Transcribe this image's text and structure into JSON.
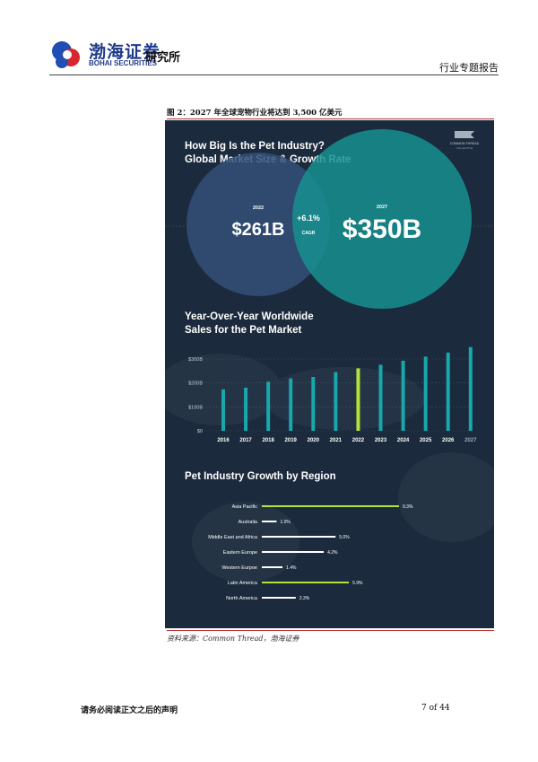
{
  "header": {
    "brand_cn": "渤海证券",
    "brand_en": "BOHAI SECURITIES",
    "institute": "研究所",
    "report_type": "行业专题报告"
  },
  "figure": {
    "caption": "图 2：2027 年全球宠物行业将达到 3,500 亿美元",
    "source": "资料来源：Common Thread，渤海证券"
  },
  "infographic": {
    "brand_line1": "COMMON THREAD",
    "brand_line2": "COLLECTIVE",
    "colors": {
      "background": "#1b2a3c",
      "accent_teal": "#17a8ad",
      "accent_lime": "#b6e03a",
      "circle_2022": "#324f78",
      "circle_2027": "#168f8f"
    }
  },
  "chart_data": [
    {
      "type": "bubble",
      "title": "How Big Is the Pet Industry?\nGlobal Market Size & Growth Rate",
      "title_line1": "How Big Is the Pet Industry?",
      "title_line2": "Global Market Size & Growth Rate",
      "points": [
        {
          "year": "2022",
          "label": "$261B",
          "value": 261
        },
        {
          "year": "2027",
          "label": "$350B",
          "value": 350
        }
      ],
      "growth_label": "+6.1%",
      "growth_unit": "CAGR"
    },
    {
      "type": "bar",
      "title": "Year-Over-Year Worldwide\nSales for the Pet Market",
      "title_line1": "Year-Over-Year Worldwide",
      "title_line2": "Sales for the Pet Market",
      "categories": [
        "2016",
        "2017",
        "2018",
        "2019",
        "2020",
        "2021",
        "2022",
        "2023",
        "2024",
        "2025",
        "2026",
        "2027"
      ],
      "values": [
        173,
        180,
        205,
        219,
        225,
        245,
        261,
        276,
        293,
        310,
        327,
        350
      ],
      "highlight_category": "2022",
      "ylim": [
        0,
        300
      ],
      "yticks": [
        0,
        100,
        200,
        300
      ],
      "ytick_labels": [
        "$0",
        "$100B",
        "$200B",
        "$300B"
      ],
      "grid": true
    },
    {
      "type": "bar",
      "orientation": "horizontal",
      "title": "Pet Industry Growth by Region",
      "categories": [
        "Asia Pacific",
        "Australia",
        "Middle East and Africa",
        "Eastern Europe",
        "Western Eurpoe",
        "Latin America",
        "North America"
      ],
      "values": [
        9.3,
        1.0,
        5.0,
        4.2,
        1.4,
        5.9,
        2.3
      ],
      "value_labels": [
        "9.3%",
        "1.0%",
        "5.0%",
        "4.2%",
        "1.4%",
        "5.9%",
        "2.3%"
      ],
      "highlight_categories": [
        "Asia Pacific",
        "Latin America"
      ]
    }
  ],
  "footer": {
    "disclaimer": "请务必阅读正文之后的声明",
    "page": "7 of 44"
  }
}
